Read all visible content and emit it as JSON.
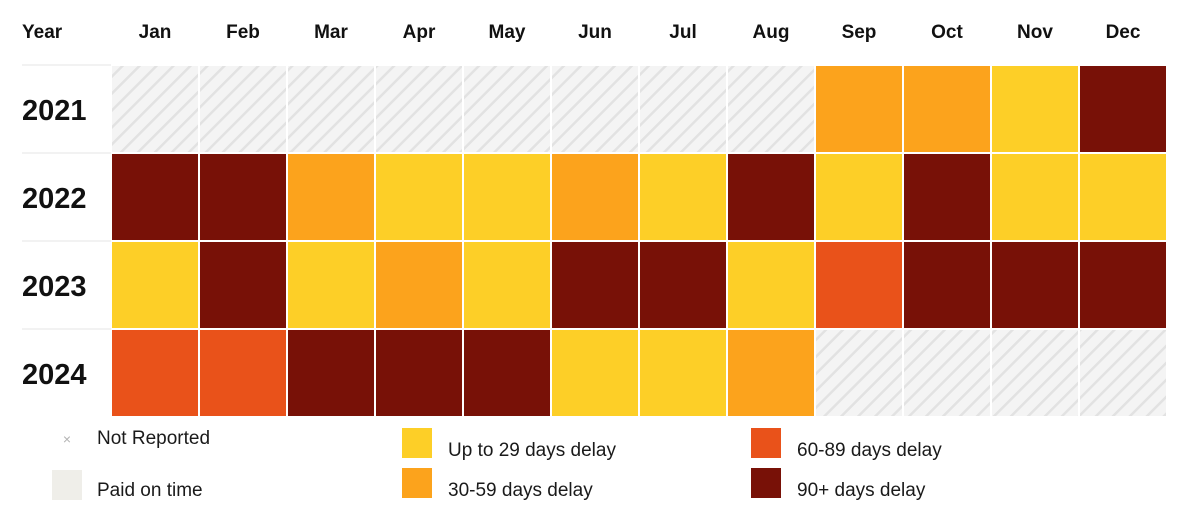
{
  "chart_data": {
    "type": "heatmap",
    "x_header": "Year",
    "columns": [
      "Jan",
      "Feb",
      "Mar",
      "Apr",
      "May",
      "Jun",
      "Jul",
      "Aug",
      "Sep",
      "Oct",
      "Nov",
      "Dec"
    ],
    "rows": [
      "2021",
      "2022",
      "2023",
      "2024"
    ],
    "values": [
      [
        "none",
        "none",
        "none",
        "none",
        "none",
        "none",
        "none",
        "none",
        "30-59",
        "30-59",
        "up-to-29",
        "90+"
      ],
      [
        "90+",
        "90+",
        "30-59",
        "up-to-29",
        "up-to-29",
        "30-59",
        "up-to-29",
        "90+",
        "up-to-29",
        "90+",
        "up-to-29",
        "up-to-29"
      ],
      [
        "up-to-29",
        "90+",
        "up-to-29",
        "30-59",
        "up-to-29",
        "90+",
        "90+",
        "up-to-29",
        "60-89",
        "90+",
        "90+",
        "90+"
      ],
      [
        "60-89",
        "60-89",
        "90+",
        "90+",
        "90+",
        "up-to-29",
        "up-to-29",
        "30-59",
        "none",
        "none",
        "none",
        "none"
      ]
    ],
    "colors": {
      "up-to-29": "#fdcf27",
      "30-59": "#fca31c",
      "60-89": "#e9521a",
      "90+": "#781107",
      "paid-on-time": "#efeee9"
    }
  },
  "legend": {
    "not_reported": "Not Reported",
    "not_reported_mark": "×",
    "paid_on_time": "Paid on time",
    "up_to_29": "Up to 29 days delay",
    "d30_59": "30-59 days delay",
    "d60_89": "60-89 days delay",
    "d90_plus": "90+ days delay"
  }
}
